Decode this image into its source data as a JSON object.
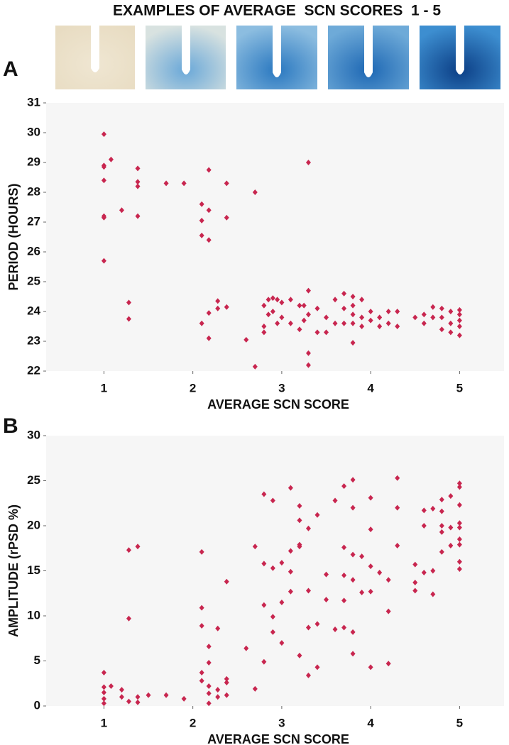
{
  "header": {
    "title": "EXAMPLES OF AVERAGE  SCN SCORES  1 - 5"
  },
  "chart_data": [
    {
      "type": "scatter",
      "panel": "A",
      "xlabel": "AVERAGE SCN SCORE",
      "ylabel": "PERIOD (HOURS)",
      "color": "#c8264f",
      "grid": false,
      "xlim": [
        0.35,
        5.5
      ],
      "xticks": [
        1,
        2,
        3,
        4,
        5
      ],
      "ylim": [
        22,
        31
      ],
      "yticks": [
        22,
        23,
        24,
        25,
        26,
        27,
        28,
        29,
        30,
        31
      ],
      "x": [
        1,
        1,
        1,
        1,
        1,
        1,
        1,
        1.08,
        1.2,
        1.28,
        1.28,
        1.38,
        1.38,
        1.38,
        1.38,
        1.7,
        1.9,
        2.1,
        2.1,
        2.1,
        2.1,
        2.18,
        2.18,
        2.18,
        2.18,
        2.18,
        2.28,
        2.28,
        2.38,
        2.38,
        2.38,
        2.6,
        2.7,
        2.7,
        2.8,
        2.8,
        2.8,
        2.85,
        2.85,
        2.9,
        2.9,
        2.95,
        2.95,
        3,
        3,
        3.1,
        3.1,
        3.2,
        3.2,
        3.25,
        3.25,
        3.3,
        3.3,
        3.3,
        3.3,
        3.3,
        3.4,
        3.4,
        3.5,
        3.5,
        3.6,
        3.6,
        3.7,
        3.7,
        3.7,
        3.8,
        3.8,
        3.8,
        3.8,
        3.8,
        3.9,
        3.9,
        3.9,
        4,
        4,
        4.1,
        4.1,
        4.2,
        4.2,
        4.3,
        4.3,
        4.5,
        4.6,
        4.6,
        4.7,
        4.7,
        4.8,
        4.8,
        4.8,
        4.9,
        4.9,
        4.9,
        5,
        5,
        5,
        5,
        5
      ],
      "values": [
        29.95,
        28.9,
        28.85,
        28.4,
        27.2,
        27.15,
        25.7,
        29.1,
        27.4,
        24.3,
        23.75,
        28.8,
        28.35,
        28.2,
        27.2,
        28.3,
        28.3,
        27.6,
        27.05,
        26.55,
        23.6,
        28.75,
        27.4,
        26.4,
        23.95,
        23.1,
        24.1,
        24.35,
        28.3,
        27.15,
        24.15,
        23.05,
        28,
        22.15,
        24.2,
        23.5,
        23.3,
        24.4,
        23.9,
        24.45,
        24,
        24.4,
        23.6,
        24.3,
        23.8,
        24.4,
        23.6,
        24.2,
        23.4,
        24.2,
        23.7,
        29,
        24.7,
        23.9,
        22.6,
        22.2,
        23.3,
        24.1,
        23.8,
        23.3,
        24.4,
        23.6,
        24.6,
        24.1,
        23.6,
        24.5,
        24.2,
        23.9,
        23.6,
        22.95,
        24.4,
        23.8,
        23.5,
        24,
        23.7,
        23.8,
        23.5,
        24,
        23.6,
        24,
        23.5,
        23.8,
        23.9,
        23.6,
        24.15,
        23.8,
        24.1,
        23.8,
        23.4,
        24,
        23.6,
        23.3,
        24.05,
        23.9,
        23.7,
        23.5,
        23.2
      ]
    },
    {
      "type": "scatter",
      "panel": "B",
      "xlabel": "AVERAGE SCN SCORE",
      "ylabel": "AMPLITUDE (rPSD %)",
      "color": "#c8264f",
      "grid": false,
      "xlim": [
        0.35,
        5.5
      ],
      "xticks": [
        1,
        2,
        3,
        4,
        5
      ],
      "ylim": [
        0,
        30
      ],
      "yticks": [
        0,
        5,
        10,
        15,
        20,
        25,
        30
      ],
      "x": [
        1,
        1,
        1,
        1,
        1,
        1.08,
        1.2,
        1.2,
        1.28,
        1.28,
        1.28,
        1.38,
        1.38,
        1.38,
        1.5,
        1.7,
        1.9,
        2.1,
        2.1,
        2.1,
        2.1,
        2.1,
        2.18,
        2.18,
        2.18,
        2.18,
        2.18,
        2.28,
        2.28,
        2.28,
        2.38,
        2.38,
        2.38,
        2.38,
        2.6,
        2.7,
        2.7,
        2.8,
        2.8,
        2.8,
        2.8,
        2.9,
        2.9,
        2.9,
        2.9,
        3,
        3,
        3,
        3.1,
        3.1,
        3.1,
        3.1,
        3.2,
        3.2,
        3.2,
        3.2,
        3.2,
        3.3,
        3.3,
        3.3,
        3.3,
        3.4,
        3.4,
        3.4,
        3.5,
        3.5,
        3.6,
        3.6,
        3.7,
        3.7,
        3.7,
        3.7,
        3.7,
        3.8,
        3.8,
        3.8,
        3.8,
        3.8,
        3.8,
        3.9,
        3.9,
        4,
        4,
        4,
        4,
        4,
        4.1,
        4.2,
        4.2,
        4.2,
        4.3,
        4.3,
        4.3,
        4.5,
        4.5,
        4.5,
        4.6,
        4.6,
        4.6,
        4.7,
        4.7,
        4.7,
        4.8,
        4.8,
        4.8,
        4.8,
        4.8,
        4.9,
        4.9,
        4.9,
        5,
        5,
        5,
        5,
        5,
        5,
        5,
        5,
        5
      ],
      "values": [
        3.7,
        2.1,
        1.5,
        0.8,
        0.3,
        2.2,
        1.8,
        1,
        17.3,
        9.7,
        0.5,
        17.7,
        1,
        0.4,
        1.2,
        1.2,
        0.8,
        17.1,
        10.9,
        8.9,
        3.7,
        2.8,
        6.6,
        4.8,
        2.2,
        1.4,
        0.3,
        8.6,
        1.8,
        1,
        13.8,
        3,
        2.6,
        1.2,
        6.4,
        17.7,
        1.9,
        23.5,
        15.8,
        11.2,
        4.9,
        22.8,
        15.3,
        9.9,
        8.2,
        15.9,
        11.5,
        7,
        24.2,
        17.2,
        14.9,
        12.7,
        22.2,
        20.6,
        17.9,
        17.7,
        5.6,
        19.7,
        12.8,
        8.7,
        3.4,
        21.2,
        9.1,
        4.3,
        14.6,
        11.8,
        22.8,
        8.5,
        24.4,
        17.6,
        14.5,
        11.7,
        8.7,
        25.1,
        22,
        16.8,
        14,
        8.2,
        5.8,
        16.6,
        12.6,
        23.1,
        19.6,
        15.5,
        12.7,
        4.3,
        14.8,
        14,
        10.5,
        4.7,
        25.3,
        22,
        17.8,
        15.7,
        13.7,
        12.8,
        21.7,
        20,
        14.8,
        21.9,
        15,
        12.4,
        22.9,
        21.6,
        20,
        19.3,
        17.1,
        23.3,
        19.8,
        17.8,
        24.7,
        24.3,
        22.3,
        20.3,
        19.8,
        18.5,
        17.9,
        16,
        15.2
      ]
    }
  ]
}
